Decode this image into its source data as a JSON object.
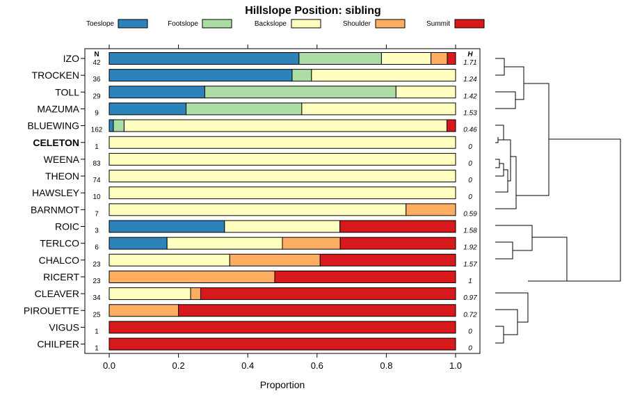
{
  "chart_data": {
    "type": "bar",
    "orientation": "horizontal",
    "stacked": true,
    "title": "Hillslope Position: sibling",
    "xlabel": "Proportion",
    "ylabel": "",
    "xlim": [
      0,
      1
    ],
    "x_ticks": [
      "0.0",
      "0.2",
      "0.4",
      "0.6",
      "0.8",
      "1.0"
    ],
    "legend_position": "top",
    "n_header": "N",
    "h_header": "H",
    "highlight_category": "CELETON",
    "series": [
      {
        "name": "Toeslope",
        "color": "#2b83ba"
      },
      {
        "name": "Footslope",
        "color": "#abdda4"
      },
      {
        "name": "Backslope",
        "color": "#ffffbf"
      },
      {
        "name": "Shoulder",
        "color": "#fdae61"
      },
      {
        "name": "Summit",
        "color": "#d7191c"
      }
    ],
    "categories": [
      "IZO",
      "TROCKEN",
      "TOLL",
      "MAZUMA",
      "BLUEWING",
      "CELETON",
      "WEENA",
      "THEON",
      "HAWSLEY",
      "BARNMOT",
      "ROIC",
      "TERLCO",
      "CHALCO",
      "RICERT",
      "CLEAVER",
      "PIROUETTE",
      "VIGUS",
      "CHILPER"
    ],
    "n": [
      "42",
      "36",
      "29",
      "9",
      "162",
      "1",
      "83",
      "74",
      "10",
      "7",
      "3",
      "6",
      "23",
      "23",
      "34",
      "25",
      "1",
      "1"
    ],
    "h": [
      "1.71",
      "1.24",
      "1.42",
      "1.53",
      "0.46",
      "0",
      "0",
      "0",
      "0",
      "0.59",
      "1.58",
      "1.92",
      "1.57",
      "1",
      "0.97",
      "0.72",
      "0",
      "0"
    ],
    "values": [
      [
        0.548,
        0.238,
        0.143,
        0.047,
        0.024
      ],
      [
        0.528,
        0.056,
        0.416,
        0,
        0
      ],
      [
        0.276,
        0.552,
        0.172,
        0,
        0
      ],
      [
        0.222,
        0.334,
        0.444,
        0,
        0
      ],
      [
        0.012,
        0.031,
        0.932,
        0,
        0.025
      ],
      [
        0,
        0,
        1,
        0,
        0
      ],
      [
        0,
        0,
        1,
        0,
        0
      ],
      [
        0,
        0,
        1,
        0,
        0
      ],
      [
        0,
        0,
        1,
        0,
        0
      ],
      [
        0,
        0,
        0.857,
        0.143,
        0
      ],
      [
        0.333,
        0,
        0.333,
        0,
        0.334
      ],
      [
        0.167,
        0,
        0.333,
        0.167,
        0.333
      ],
      [
        0,
        0,
        0.348,
        0.261,
        0.391
      ],
      [
        0,
        0,
        0,
        0.478,
        0.522
      ],
      [
        0,
        0,
        0.235,
        0.029,
        0.736
      ],
      [
        0,
        0,
        0,
        0.2,
        0.8
      ],
      [
        0,
        0,
        0,
        0,
        1
      ],
      [
        0,
        0,
        0,
        0,
        1
      ]
    ]
  }
}
